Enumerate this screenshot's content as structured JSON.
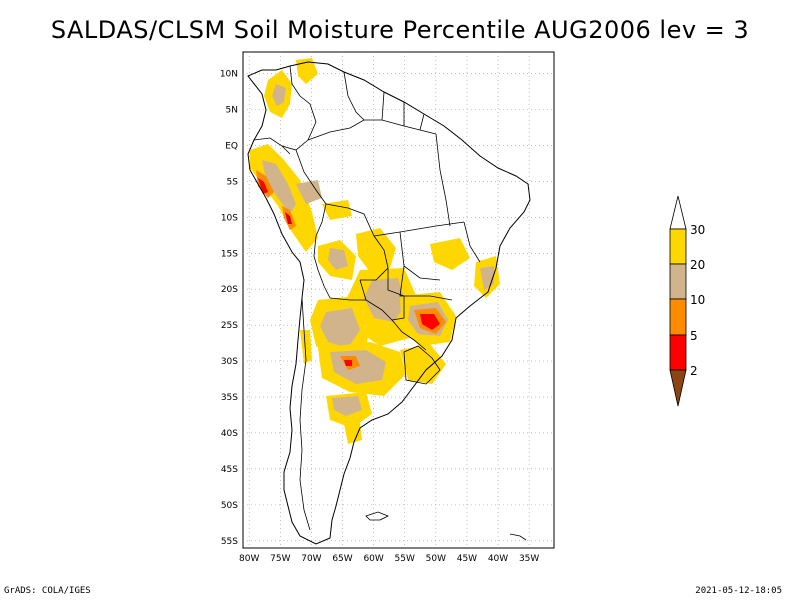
{
  "title": "SALDAS/CLSM Soil Moisture Percentile AUG2006 lev = 3",
  "footer": {
    "left": "GrADS: COLA/IGES",
    "right": "2021-05-12-18:05"
  },
  "map": {
    "lon_range": [
      -81,
      -31
    ],
    "lat_range": [
      -56,
      13
    ],
    "lon_ticks": [
      "80W",
      "75W",
      "70W",
      "65W",
      "60W",
      "55W",
      "50W",
      "45W",
      "40W",
      "35W"
    ],
    "lat_ticks": [
      "10N",
      "5N",
      "EQ",
      "5S",
      "10S",
      "15S",
      "20S",
      "25S",
      "30S",
      "35S",
      "40S",
      "45S",
      "50S",
      "55S"
    ]
  },
  "colorbar": {
    "labels": [
      "2",
      "5",
      "10",
      "20",
      "30"
    ],
    "colors": {
      "above_30": "#ffffff",
      "20_30": "#ffd700",
      "10_20": "#d2b48c",
      "5_10": "#ff8c00",
      "2_5": "#ff0000",
      "below_2": "#8b4513"
    }
  }
}
